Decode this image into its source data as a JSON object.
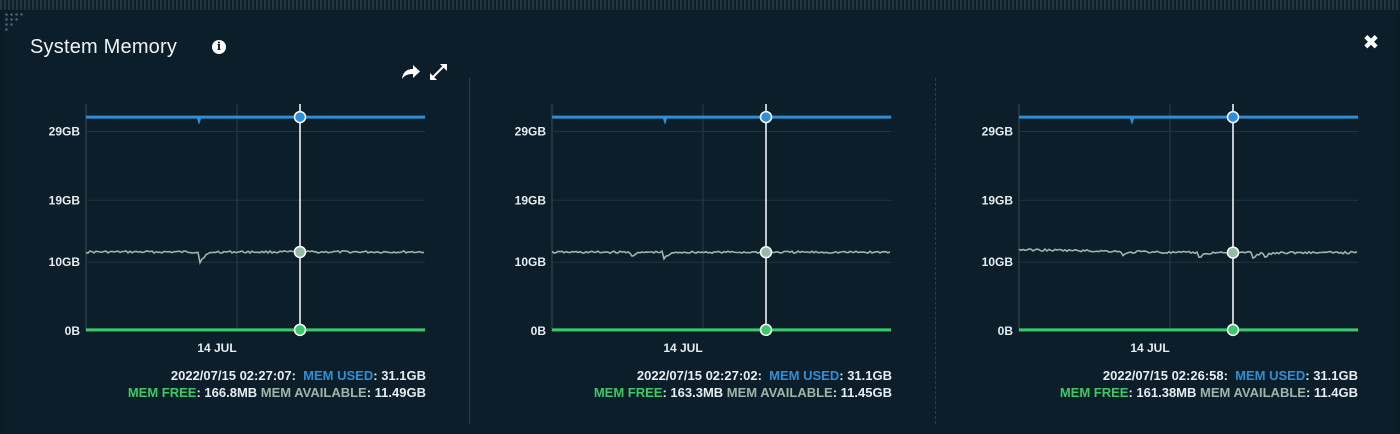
{
  "widget": {
    "title": "System Memory",
    "info_glyph": "i",
    "close_glyph": "✖"
  },
  "icons": {
    "share": "share-arrow-icon",
    "expand": "expand-arrows-icon",
    "close": "close-icon",
    "info": "info-icon"
  },
  "colors": {
    "background": "#0b1e29",
    "mem_used": "#2e8fd8",
    "mem_free": "#3ec86a",
    "mem_available": "#98b8a8",
    "cursor": "#ffffff"
  },
  "legend_labels": {
    "used": "MEM USED",
    "free": "MEM FREE",
    "available": "MEM AVAILABLE"
  },
  "chart_data": [
    {
      "type": "line",
      "ytick_labels": [
        "0B",
        "10GB",
        "19GB",
        "29GB"
      ],
      "yticks": [
        0,
        10,
        19,
        29
      ],
      "ylim": [
        0,
        33
      ],
      "xtick_labels": [
        "14 JUL"
      ],
      "grid": true,
      "series": [
        {
          "name": "MEM USED",
          "value": 31.1
        },
        {
          "name": "MEM AVAILABLE",
          "value": 11.49
        },
        {
          "name": "MEM FREE",
          "value": 0.1668
        }
      ],
      "hover": {
        "timestamp": "2022/07/15 02:27:07:",
        "used": "31.1GB",
        "free": "166.8MB",
        "available": "11.49GB"
      }
    },
    {
      "type": "line",
      "ytick_labels": [
        "0B",
        "10GB",
        "19GB",
        "29GB"
      ],
      "yticks": [
        0,
        10,
        19,
        29
      ],
      "ylim": [
        0,
        33
      ],
      "xtick_labels": [
        "14 JUL"
      ],
      "grid": true,
      "series": [
        {
          "name": "MEM USED",
          "value": 31.1
        },
        {
          "name": "MEM AVAILABLE",
          "value": 11.45
        },
        {
          "name": "MEM FREE",
          "value": 0.1633
        }
      ],
      "hover": {
        "timestamp": "2022/07/15 02:27:02:",
        "used": "31.1GB",
        "free": "163.3MB",
        "available": "11.45GB"
      }
    },
    {
      "type": "line",
      "ytick_labels": [
        "0B",
        "10GB",
        "19GB",
        "29GB"
      ],
      "yticks": [
        0,
        10,
        19,
        29
      ],
      "ylim": [
        0,
        33
      ],
      "xtick_labels": [
        "14 JUL"
      ],
      "grid": true,
      "series": [
        {
          "name": "MEM USED",
          "value": 31.1
        },
        {
          "name": "MEM AVAILABLE",
          "value": 11.4
        },
        {
          "name": "MEM FREE",
          "value": 0.16138
        }
      ],
      "hover": {
        "timestamp": "2022/07/15 02:26:58:",
        "used": "31.1GB",
        "free": "161.38MB",
        "available": "11.4GB"
      }
    }
  ]
}
